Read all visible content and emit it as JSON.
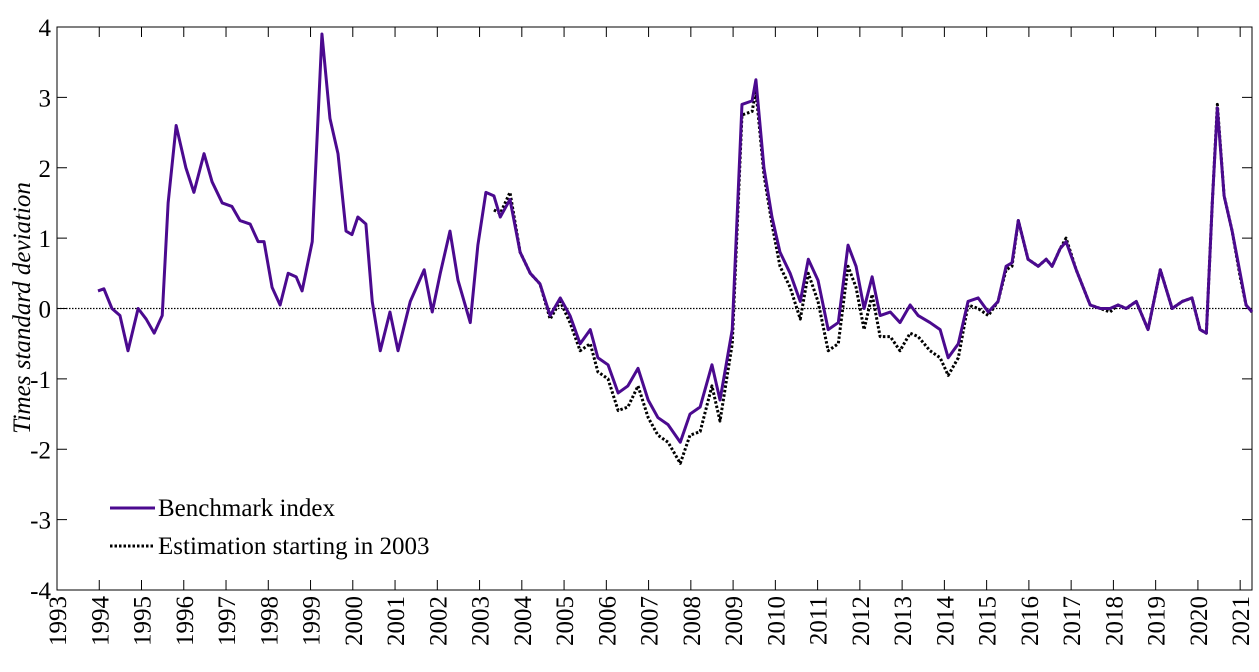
{
  "chart_data": {
    "type": "line",
    "ylabel": "Times standard deviation",
    "x": [
      1993.97,
      1994.11,
      1994.3,
      1994.49,
      1994.68,
      1994.92,
      1995.11,
      1995.3,
      1995.49,
      1995.63,
      1995.82,
      1996.05,
      1996.24,
      1996.48,
      1996.67,
      1996.91,
      1997.14,
      1997.33,
      1997.57,
      1997.76,
      1997.9,
      1998.09,
      1998.28,
      1998.47,
      1998.66,
      1998.8,
      1999.04,
      1999.27,
      1999.46,
      1999.65,
      1999.84,
      1999.98,
      2000.12,
      2000.31,
      2000.46,
      2000.65,
      2000.88,
      2001.07,
      2001.36,
      2001.69,
      2001.88,
      2002.07,
      2002.3,
      2002.49,
      2002.78,
      2002.96,
      2003.15,
      2003.34,
      2003.49,
      2003.72,
      2003.96,
      2004.2,
      2004.43,
      2004.67,
      2004.91,
      2005.14,
      2005.38,
      2005.62,
      2005.8,
      2006.04,
      2006.28,
      2006.51,
      2006.75,
      2006.99,
      2007.22,
      2007.46,
      2007.75,
      2007.98,
      2008.22,
      2008.5,
      2008.69,
      2008.98,
      2009.21,
      2009.45,
      2009.54,
      2009.73,
      2009.92,
      2010.11,
      2010.35,
      2010.59,
      2010.78,
      2011.01,
      2011.25,
      2011.49,
      2011.72,
      2011.91,
      2012.1,
      2012.29,
      2012.48,
      2012.72,
      2012.95,
      2013.19,
      2013.38,
      2013.66,
      2013.9,
      2014.09,
      2014.33,
      2014.56,
      2014.8,
      2015.04,
      2015.27,
      2015.46,
      2015.6,
      2015.75,
      2015.98,
      2016.22,
      2016.41,
      2016.55,
      2016.74,
      2016.88,
      2017.12,
      2017.45,
      2017.69,
      2017.92,
      2018.11,
      2018.3,
      2018.54,
      2018.82,
      2019.11,
      2019.39,
      2019.63,
      2019.86,
      2020.05,
      2020.2,
      2020.34,
      2020.46,
      2020.62,
      2020.81,
      2021.0,
      2021.14,
      2021.28
    ],
    "series": [
      {
        "name": "Benchmark index",
        "color": "#4b0a8f",
        "style": "solid",
        "values": [
          0.25,
          0.28,
          0.0,
          -0.1,
          -0.6,
          0.0,
          -0.15,
          -0.35,
          -0.1,
          1.5,
          2.6,
          2.0,
          1.65,
          2.2,
          1.8,
          1.5,
          1.45,
          1.25,
          1.2,
          0.95,
          0.95,
          0.3,
          0.05,
          0.5,
          0.45,
          0.25,
          0.95,
          3.9,
          2.7,
          2.2,
          1.1,
          1.05,
          1.3,
          1.2,
          0.1,
          -0.6,
          -0.05,
          -0.6,
          0.1,
          0.55,
          -0.05,
          0.5,
          1.1,
          0.4,
          -0.2,
          0.9,
          1.65,
          1.6,
          1.3,
          1.55,
          0.8,
          0.5,
          0.35,
          -0.1,
          0.15,
          -0.1,
          -0.5,
          -0.3,
          -0.7,
          -0.8,
          -1.2,
          -1.1,
          -0.85,
          -1.3,
          -1.55,
          -1.65,
          -1.9,
          -1.5,
          -1.4,
          -0.8,
          -1.3,
          -0.3,
          2.9,
          2.95,
          3.25,
          2.0,
          1.3,
          0.8,
          0.5,
          0.1,
          0.7,
          0.4,
          -0.3,
          -0.2,
          0.9,
          0.6,
          0.0,
          0.45,
          -0.1,
          -0.05,
          -0.2,
          0.05,
          -0.1,
          -0.2,
          -0.3,
          -0.7,
          -0.5,
          0.1,
          0.15,
          -0.05,
          0.1,
          0.6,
          0.65,
          1.25,
          0.7,
          0.6,
          0.7,
          0.6,
          0.85,
          0.95,
          0.55,
          0.05,
          0.0,
          0.0,
          0.05,
          0.0,
          0.1,
          -0.3,
          0.55,
          0.0,
          0.1,
          0.15,
          -0.3,
          -0.35,
          1.5,
          2.85,
          1.6,
          1.1,
          0.5,
          0.05,
          -0.05
        ]
      },
      {
        "name": "Estimation starting in 2003",
        "color": "#000000",
        "style": "dotted",
        "values": [
          null,
          null,
          null,
          null,
          null,
          null,
          null,
          null,
          null,
          null,
          null,
          null,
          null,
          null,
          null,
          null,
          null,
          null,
          null,
          null,
          null,
          null,
          null,
          null,
          null,
          null,
          null,
          null,
          null,
          null,
          null,
          null,
          null,
          null,
          null,
          null,
          null,
          null,
          null,
          null,
          null,
          null,
          null,
          null,
          null,
          null,
          null,
          1.4,
          1.35,
          1.65,
          0.8,
          0.5,
          0.35,
          -0.15,
          0.1,
          -0.2,
          -0.6,
          -0.5,
          -0.9,
          -1.0,
          -1.45,
          -1.4,
          -1.1,
          -1.55,
          -1.8,
          -1.9,
          -2.2,
          -1.8,
          -1.75,
          -1.1,
          -1.6,
          -0.5,
          2.75,
          2.8,
          3.1,
          1.9,
          1.2,
          0.6,
          0.3,
          -0.15,
          0.5,
          0.1,
          -0.6,
          -0.5,
          0.6,
          0.3,
          -0.3,
          0.2,
          -0.4,
          -0.4,
          -0.6,
          -0.35,
          -0.4,
          -0.6,
          -0.7,
          -0.95,
          -0.7,
          0.05,
          0.0,
          -0.1,
          0.1,
          0.55,
          0.6,
          1.25,
          0.7,
          0.6,
          0.7,
          0.6,
          0.85,
          1.0,
          0.55,
          0.05,
          0.0,
          -0.05,
          0.05,
          0.0,
          0.1,
          -0.3,
          0.55,
          0.0,
          0.1,
          0.15,
          -0.3,
          -0.35,
          1.5,
          2.9,
          1.6,
          1.1,
          0.45,
          0.05,
          -0.05
        ]
      }
    ],
    "xlim": [
      1993,
      2021.28
    ],
    "xticks": [
      1993,
      1994,
      1995,
      1996,
      1997,
      1998,
      1999,
      2000,
      2001,
      2002,
      2003,
      2004,
      2005,
      2006,
      2007,
      2008,
      2009,
      2010,
      2011,
      2012,
      2013,
      2014,
      2015,
      2016,
      2017,
      2018,
      2019,
      2020,
      2021
    ],
    "ylim": [
      -4,
      4
    ],
    "yticks": [
      -4,
      -3,
      -2,
      -1,
      0,
      1,
      2,
      3,
      4
    ],
    "legend": "lower left"
  }
}
